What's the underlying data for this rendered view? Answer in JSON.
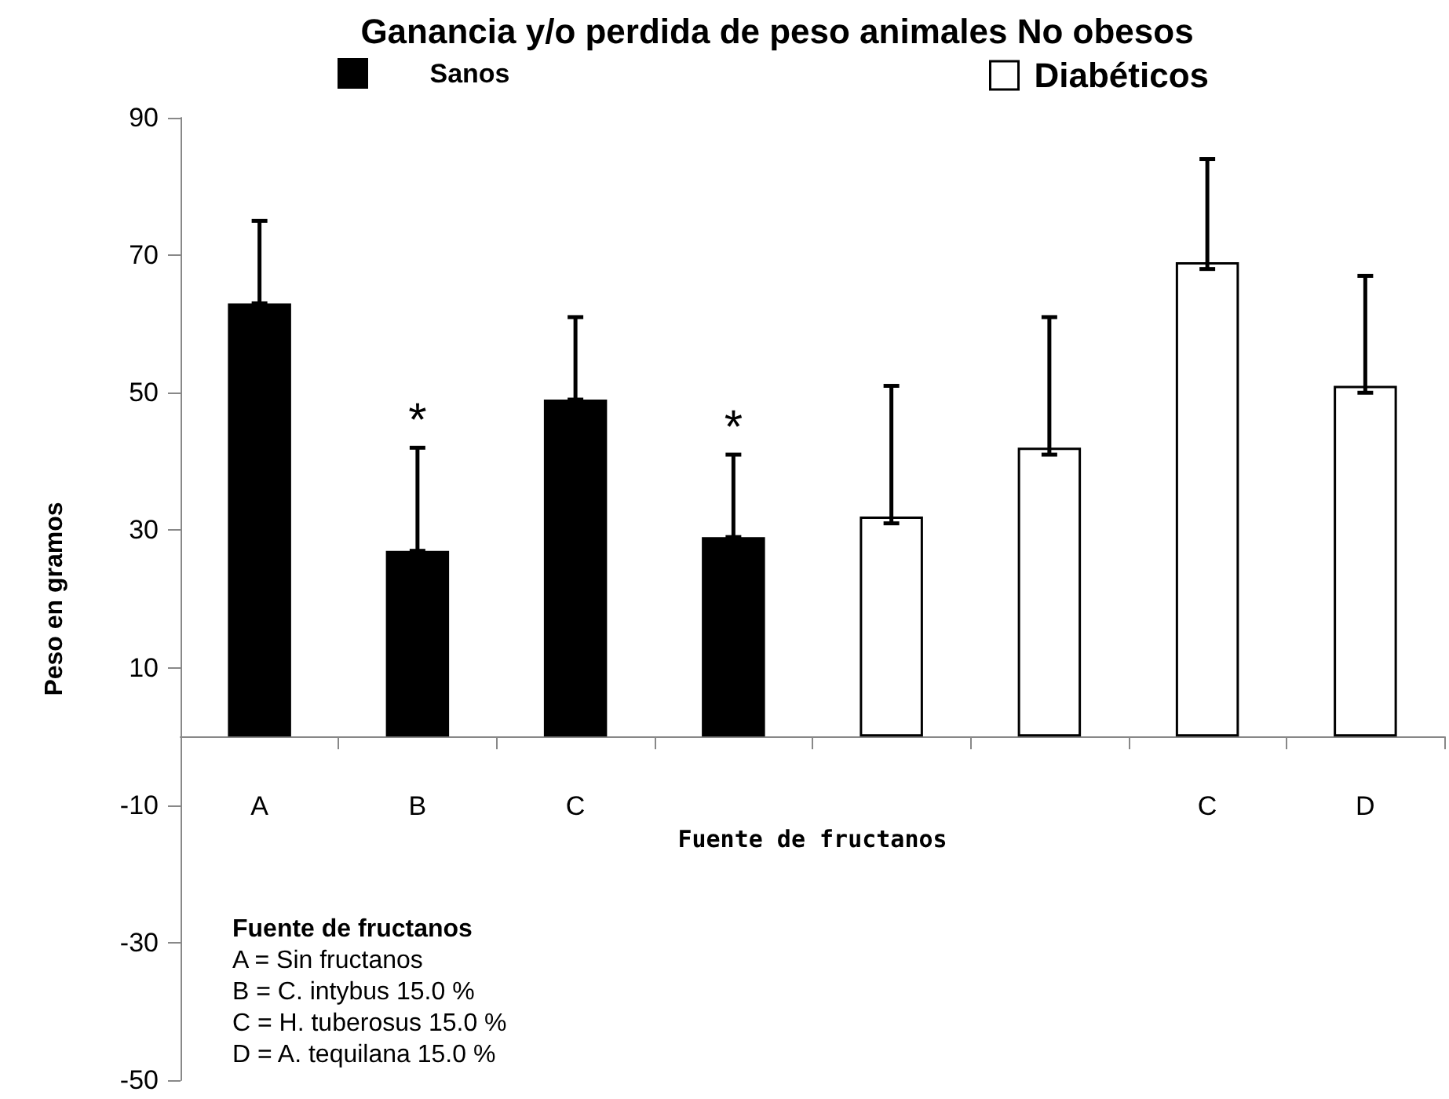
{
  "chart_data": {
    "type": "bar",
    "title": "Ganancia y/o perdida de peso animales No obesos",
    "xlabel": "Fuente de fructanos",
    "ylabel": "Peso en gramos",
    "categories": [
      "A",
      "B",
      "C",
      null,
      null,
      null,
      "C",
      "D"
    ],
    "series": [
      {
        "name": "Sanos",
        "color": "#000000",
        "values": [
          63,
          27,
          49,
          29,
          null,
          null,
          null,
          null
        ],
        "errors": [
          [
            63,
            75
          ],
          [
            27,
            42
          ],
          [
            49,
            61
          ],
          [
            29,
            41
          ],
          null,
          null,
          null,
          null
        ],
        "value_labels": [
          null,
          "*",
          null,
          "*",
          null,
          null,
          null,
          null
        ]
      },
      {
        "name": "Diabéticos",
        "color": "#ffffff",
        "values": [
          null,
          null,
          null,
          null,
          32,
          42,
          69,
          51
        ],
        "errors": [
          null,
          null,
          null,
          null,
          [
            31,
            51
          ],
          [
            41,
            61
          ],
          [
            68,
            84
          ],
          [
            50,
            67
          ]
        ]
      }
    ],
    "ylim": [
      -50,
      90
    ],
    "yticks": [
      -50,
      -30,
      -10,
      10,
      30,
      50,
      70,
      90
    ],
    "grid": false,
    "legend": "top",
    "annotations": [
      "Fuente de fructanos",
      "A = Sin fructanos",
      "B = C. intybus 15.0 %",
      "C = H. tuberosus 15.0 %",
      "D = A. tequilana 15.0 %"
    ]
  }
}
